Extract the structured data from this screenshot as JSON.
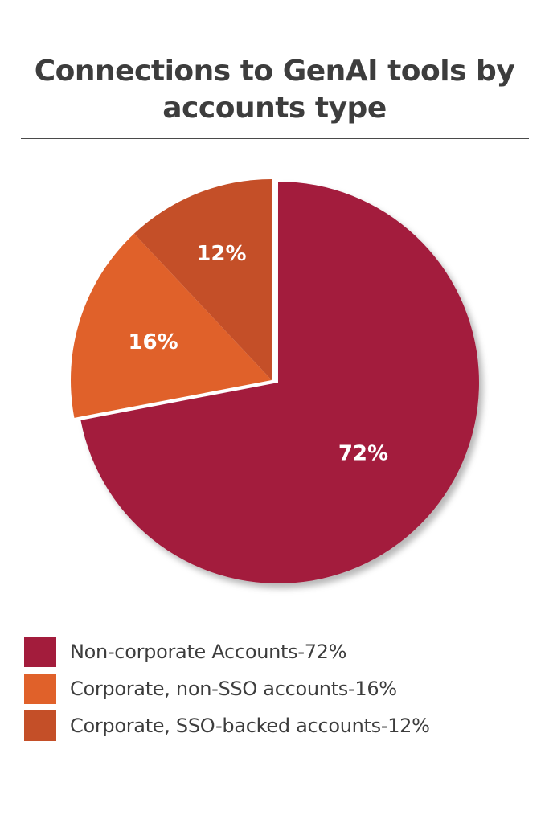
{
  "chart_data": {
    "type": "pie",
    "title": "Connections to GenAI tools by accounts type",
    "unit": "%",
    "categories": [
      "Non-corporate Accounts",
      "Corporate, non-SSO accounts",
      "Corporate, SSO-backed accounts"
    ],
    "values": [
      72,
      16,
      12
    ],
    "slice_labels": [
      "72%",
      "16%",
      "12%"
    ],
    "colors": [
      "#a31c3c",
      "#e0612a",
      "#c44f28"
    ],
    "legend_position": "bottom",
    "legend": [
      {
        "label": "Non-corporate Accounts-72%",
        "color": "#a31c3c"
      },
      {
        "label": "Corporate, non-SSO accounts-16%",
        "color": "#e0612a"
      },
      {
        "label": "Corporate, SSO-backed accounts-12%",
        "color": "#c44f28"
      }
    ]
  }
}
